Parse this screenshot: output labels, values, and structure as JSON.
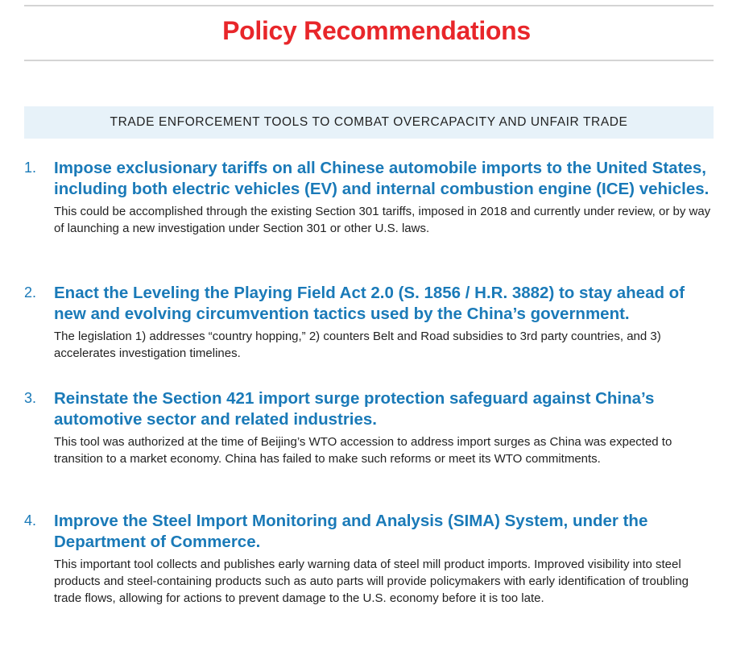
{
  "title": "Policy Recommendations",
  "section_header": "TRADE ENFORCEMENT TOOLS TO COMBAT OVERCAPACITY AND UNFAIR TRADE",
  "colors": {
    "title": "#e8262a",
    "heading": "#1a7ab8",
    "band": "#e7f2f9"
  },
  "items": [
    {
      "number": "1.",
      "heading": "Impose exclusionary tariffs on all Chinese automobile imports to the United States, including both electric vehicles (EV) and internal combustion engine (ICE) vehicles.",
      "body": "This could be accomplished through the existing Section 301 tariffs, imposed in 2018 and currently under review, or by way of launching a new investigation under Section 301 or other U.S. laws."
    },
    {
      "number": "2.",
      "heading": "Enact the Leveling the Playing Field Act 2.0 (S. 1856 / H.R. 3882) to stay ahead of new and evolving circumvention tactics used by the China’s government.",
      "body": "The legislation 1) addresses “country hopping,” 2) counters Belt and Road subsidies to 3rd party countries, and 3) accelerates investigation timelines."
    },
    {
      "number": "3.",
      "heading": "Reinstate the Section 421 import surge protection safeguard against China’s automotive sector and related industries.",
      "body": "This tool was authorized at the time of Beijing’s WTO accession to address import surges as China was expected to transition to a market economy. China has failed to make such reforms or meet its WTO commitments."
    },
    {
      "number": "4.",
      "heading": "Improve the Steel Import Monitoring and Analysis (SIMA) System, under the Department of Commerce.",
      "body": "This important tool collects and publishes early warning data of steel mill product imports. Improved visibility into steel products and steel-containing products such as auto parts will provide policymakers with early identification of troubling trade flows, allowing for actions to prevent damage to the U.S. economy before it is too late."
    }
  ]
}
